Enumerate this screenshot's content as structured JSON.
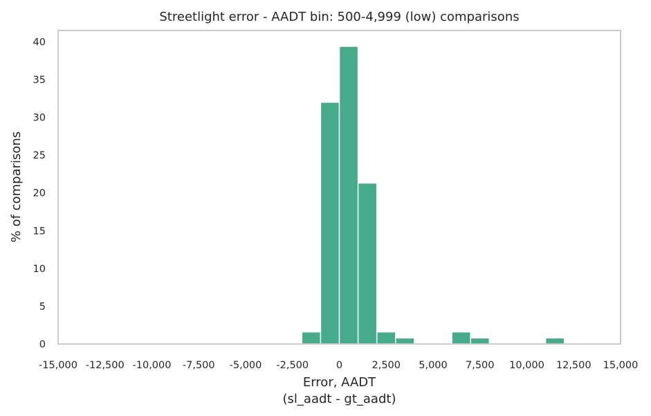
{
  "chart_data": {
    "type": "bar",
    "title": "Streetlight error - AADT bin: 500-4,999 (low) comparisons",
    "xlabel_line1": "Error, AADT",
    "xlabel_line2": "(sl_aadt - gt_aadt)",
    "ylabel": "% of comparisons",
    "xlim": [
      -15000,
      15000
    ],
    "ylim": [
      0,
      41.5
    ],
    "grid": false,
    "bar_color": "#46ab8a",
    "xticks": [
      -15000,
      -12500,
      -10000,
      -7500,
      -5000,
      -2500,
      0,
      2500,
      5000,
      7500,
      10000,
      12500,
      15000
    ],
    "xtick_labels": [
      "-15,000",
      "-12,500",
      "-10,000",
      "-7,500",
      "-5,000",
      "-2,500",
      "0",
      "2,500",
      "5,000",
      "7,500",
      "10,000",
      "12,500",
      "15,000"
    ],
    "yticks": [
      0,
      5,
      10,
      15,
      20,
      25,
      30,
      35,
      40
    ],
    "ytick_labels": [
      "0",
      "5",
      "10",
      "15",
      "20",
      "25",
      "30",
      "35",
      "40"
    ],
    "bins": [
      {
        "x0": -2000,
        "x1": -1000,
        "value": 1.6
      },
      {
        "x0": -1000,
        "x1": 0,
        "value": 32.0
      },
      {
        "x0": 0,
        "x1": 1000,
        "value": 39.4
      },
      {
        "x0": 1000,
        "x1": 2000,
        "value": 21.3
      },
      {
        "x0": 2000,
        "x1": 3000,
        "value": 1.6
      },
      {
        "x0": 3000,
        "x1": 4000,
        "value": 0.8
      },
      {
        "x0": 6000,
        "x1": 7000,
        "value": 1.6
      },
      {
        "x0": 7000,
        "x1": 8000,
        "value": 0.8
      },
      {
        "x0": 11000,
        "x1": 12000,
        "value": 0.8
      }
    ]
  }
}
